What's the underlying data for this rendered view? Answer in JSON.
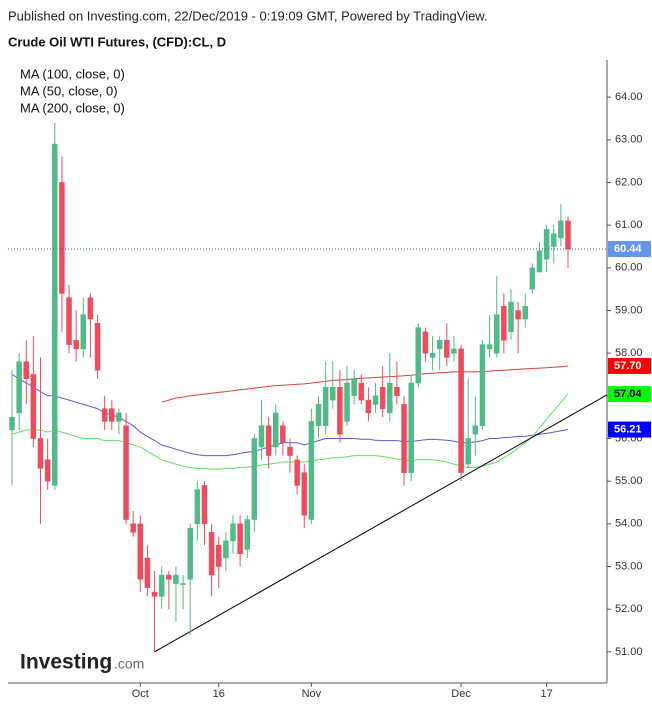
{
  "chart_data": {
    "type": "candlestick",
    "header": "Published on Investing.com, 22/Dec/2019 - 0:19:09 GMT, Powered by TradingView.",
    "title": "Crude Oil WTI Futures, (CFD):CL, D",
    "logo": {
      "brand": "Investing",
      "suffix": ".com"
    },
    "categories": [
      null,
      null,
      null,
      null,
      null,
      null,
      null,
      null,
      null,
      null,
      null,
      null,
      null,
      null,
      null,
      null,
      null,
      null,
      "Oct",
      null,
      null,
      null,
      null,
      null,
      null,
      null,
      null,
      null,
      null,
      "16",
      null,
      null,
      null,
      null,
      null,
      null,
      null,
      null,
      null,
      null,
      null,
      null,
      "Nov",
      null,
      null,
      null,
      null,
      null,
      null,
      null,
      null,
      null,
      null,
      null,
      null,
      null,
      null,
      null,
      null,
      null,
      null,
      null,
      null,
      "Dec",
      null,
      null,
      null,
      null,
      null,
      null,
      null,
      null,
      null,
      null,
      null,
      "17",
      null,
      null,
      null
    ],
    "candles": {
      "up_color": "#53b987",
      "down_color": "#eb4d5c",
      "last_label": "60.44",
      "open": [
        56.2,
        56.6,
        57.8,
        57.5,
        56.0,
        55.5,
        54.9,
        62.0,
        59.3,
        58.3,
        58.1,
        59.3,
        58.7,
        56.7,
        56.7,
        56.4,
        56.3,
        54.0,
        54.0,
        53.2,
        52.4,
        52.3,
        52.8,
        52.6,
        52.6,
        52.7,
        54.0,
        54.9,
        53.8,
        53.5,
        53.2,
        53.6,
        54.0,
        53.4,
        54.1,
        55.8,
        56.3,
        55.8,
        56.3,
        55.8,
        55.5,
        55.2,
        54.1,
        56.3,
        56.3,
        56.9,
        57.2,
        56.4,
        57.0,
        57.3,
        56.9,
        56.8,
        57.2,
        56.6,
        57.2,
        56.8,
        55.2,
        57.3,
        58.5,
        57.9,
        58.1,
        58.3,
        58.0,
        58.1,
        55.4,
        56.1,
        56.3,
        58.1,
        58.0,
        59.1,
        58.5,
        59.0,
        58.8,
        59.5,
        59.9,
        60.2,
        60.5,
        60.7,
        61.1
      ],
      "high": [
        57.6,
        58.0,
        58.3,
        58.4,
        57.9,
        56.0,
        63.4,
        62.6,
        59.6,
        59.0,
        59.3,
        59.4,
        58.9,
        57.0,
        56.9,
        56.7,
        56.6,
        54.3,
        54.2,
        53.5,
        52.9,
        53.0,
        52.9,
        53.0,
        52.8,
        54.0,
        55.0,
        55.0,
        54.0,
        53.7,
        53.8,
        54.2,
        54.2,
        54.2,
        56.1,
        56.9,
        56.5,
        56.8,
        56.4,
        56.0,
        55.6,
        55.4,
        56.7,
        57.0,
        57.8,
        57.8,
        57.6,
        57.7,
        57.6,
        57.5,
        57.2,
        57.3,
        57.7,
        58.0,
        57.8,
        57.0,
        57.5,
        58.7,
        58.6,
        58.4,
        58.4,
        58.7,
        58.4,
        58.2,
        57.4,
        57.0,
        58.3,
        58.9,
        59.8,
        59.4,
        59.5,
        59.2,
        59.4,
        60.1,
        60.6,
        61.0,
        61.0,
        61.5,
        61.2
      ],
      "low": [
        54.9,
        56.2,
        56.8,
        55.8,
        54.0,
        54.8,
        54.8,
        58.5,
        58.0,
        57.8,
        57.9,
        57.9,
        57.4,
        56.2,
        56.2,
        56.1,
        54.0,
        53.7,
        52.4,
        52.3,
        51.0,
        52.0,
        52.0,
        51.7,
        52.0,
        51.4,
        53.6,
        53.5,
        52.3,
        52.5,
        52.9,
        53.3,
        53.0,
        53.2,
        53.8,
        55.5,
        55.3,
        55.6,
        55.6,
        55.2,
        54.7,
        53.9,
        54.0,
        56.0,
        56.1,
        56.7,
        55.9,
        56.3,
        56.8,
        56.8,
        56.4,
        56.6,
        56.5,
        56.4,
        56.8,
        54.9,
        55.0,
        57.2,
        57.8,
        57.6,
        57.6,
        57.7,
        57.8,
        55.0,
        55.3,
        55.6,
        56.2,
        57.9,
        57.9,
        58.0,
        58.3,
        58.0,
        58.6,
        59.4,
        59.9,
        59.9,
        60.1,
        60.5,
        60.0
      ],
      "close": [
        56.5,
        57.8,
        57.4,
        56.0,
        55.3,
        55.0,
        62.9,
        59.4,
        58.2,
        58.1,
        58.9,
        58.8,
        57.6,
        56.4,
        56.4,
        56.6,
        54.1,
        53.8,
        52.7,
        52.5,
        52.3,
        52.8,
        52.7,
        52.8,
        52.6,
        53.9,
        54.8,
        54.0,
        52.8,
        53.0,
        53.6,
        54.0,
        53.3,
        54.1,
        56.0,
        56.3,
        55.6,
        56.6,
        55.9,
        55.6,
        54.9,
        54.2,
        56.4,
        56.8,
        57.2,
        57.2,
        56.1,
        57.3,
        57.4,
        56.9,
        56.6,
        57.0,
        56.7,
        57.3,
        57.0,
        55.2,
        57.3,
        58.6,
        58.0,
        58.0,
        58.3,
        57.9,
        58.1,
        55.2,
        56.0,
        56.3,
        58.2,
        58.2,
        58.9,
        58.3,
        59.2,
        58.8,
        59.1,
        60.0,
        60.4,
        60.9,
        60.8,
        61.1,
        60.44
      ]
    },
    "lines": [
      {
        "name": "MA (100, close, 0)",
        "color": "#5b5bd6",
        "badge_color": "#0000ff",
        "badge_text": "#ffffff",
        "last_label": "56.21",
        "values": [
          57.5,
          57.4,
          57.3,
          57.2,
          57.1,
          57.0,
          57.0,
          56.95,
          56.9,
          56.85,
          56.8,
          56.75,
          56.7,
          56.6,
          56.55,
          56.5,
          56.4,
          56.3,
          56.15,
          56.05,
          55.95,
          55.85,
          55.8,
          55.75,
          55.7,
          55.65,
          55.62,
          55.6,
          55.6,
          55.6,
          55.6,
          55.62,
          55.65,
          55.68,
          55.7,
          55.75,
          55.8,
          55.85,
          55.9,
          55.9,
          55.9,
          55.85,
          55.9,
          55.95,
          56.0,
          56.0,
          56.0,
          56.0,
          56.0,
          55.98,
          55.98,
          55.96,
          55.95,
          55.95,
          55.95,
          55.93,
          55.93,
          55.95,
          55.97,
          55.98,
          55.97,
          55.96,
          55.94,
          55.9,
          55.9,
          55.92,
          55.95,
          56.0,
          56.0,
          56.02,
          56.03,
          56.05,
          56.05,
          56.08,
          56.1,
          56.12,
          56.15,
          56.18,
          56.21
        ]
      },
      {
        "name": "MA (50, close, 0)",
        "color": "#5ee35e",
        "badge_color": "#00ff00",
        "badge_text": "#000000",
        "last_label": "57.04",
        "values": [
          56.1,
          56.15,
          56.2,
          56.2,
          56.2,
          56.15,
          56.2,
          56.15,
          56.1,
          56.05,
          56.0,
          56.0,
          56.0,
          55.95,
          55.95,
          55.95,
          55.9,
          55.85,
          55.8,
          55.7,
          55.6,
          55.5,
          55.45,
          55.4,
          55.35,
          55.32,
          55.3,
          55.3,
          55.28,
          55.28,
          55.3,
          55.3,
          55.32,
          55.33,
          55.35,
          55.38,
          55.4,
          55.42,
          55.45,
          55.45,
          55.45,
          55.45,
          55.47,
          55.5,
          55.52,
          55.55,
          55.55,
          55.57,
          55.6,
          55.6,
          55.6,
          55.6,
          55.58,
          55.55,
          55.52,
          55.5,
          55.48,
          55.5,
          55.5,
          55.5,
          55.48,
          55.45,
          55.4,
          55.35,
          55.32,
          55.32,
          55.35,
          55.4,
          55.45,
          55.55,
          55.65,
          55.78,
          55.9,
          56.05,
          56.25,
          56.45,
          56.65,
          56.85,
          57.04
        ]
      },
      {
        "name": "MA (200, close, 0)",
        "color": "#e0403a",
        "badge_color": "#ff0000",
        "badge_text": "#ffffff",
        "last_label": "57.70",
        "values": [
          null,
          null,
          null,
          null,
          null,
          null,
          null,
          null,
          null,
          null,
          null,
          null,
          null,
          null,
          null,
          null,
          null,
          null,
          null,
          null,
          null,
          56.85,
          56.9,
          56.95,
          56.97,
          57.0,
          57.02,
          57.04,
          57.06,
          57.08,
          57.1,
          57.12,
          57.14,
          57.16,
          57.18,
          57.2,
          57.22,
          57.24,
          57.25,
          57.26,
          57.27,
          57.28,
          57.3,
          57.32,
          57.34,
          57.36,
          57.37,
          57.38,
          57.4,
          57.41,
          57.42,
          57.43,
          57.44,
          57.45,
          57.46,
          57.47,
          57.48,
          57.5,
          57.52,
          57.53,
          57.54,
          57.55,
          57.56,
          57.56,
          57.56,
          57.56,
          57.57,
          57.58,
          57.59,
          57.6,
          57.61,
          57.62,
          57.63,
          57.64,
          57.65,
          57.66,
          57.67,
          57.68,
          57.7
        ]
      }
    ],
    "trendline": {
      "x": [
        20,
        83.45
      ],
      "y": [
        51.0,
        57.02
      ],
      "color": "#000000"
    },
    "last_badge_color": "#6495ed",
    "ylim": [
      50.27,
      64.87
    ],
    "yticks": [
      {
        "value": 51,
        "label": "51.00"
      },
      {
        "value": 52,
        "label": "52.00"
      },
      {
        "value": 53,
        "label": "53.00"
      },
      {
        "value": 54,
        "label": "54.00"
      },
      {
        "value": 55,
        "label": "55.00"
      },
      {
        "value": 56,
        "label": "56.00"
      },
      {
        "value": 57,
        "label": "57.00"
      },
      {
        "value": 58,
        "label": "58.00"
      },
      {
        "value": 59,
        "label": "59.00"
      },
      {
        "value": 60,
        "label": "60.00"
      },
      {
        "value": 61,
        "label": "61.00"
      },
      {
        "value": 62,
        "label": "62.00"
      },
      {
        "value": 63,
        "label": "63.00"
      },
      {
        "value": 64,
        "label": "64.00"
      }
    ]
  }
}
